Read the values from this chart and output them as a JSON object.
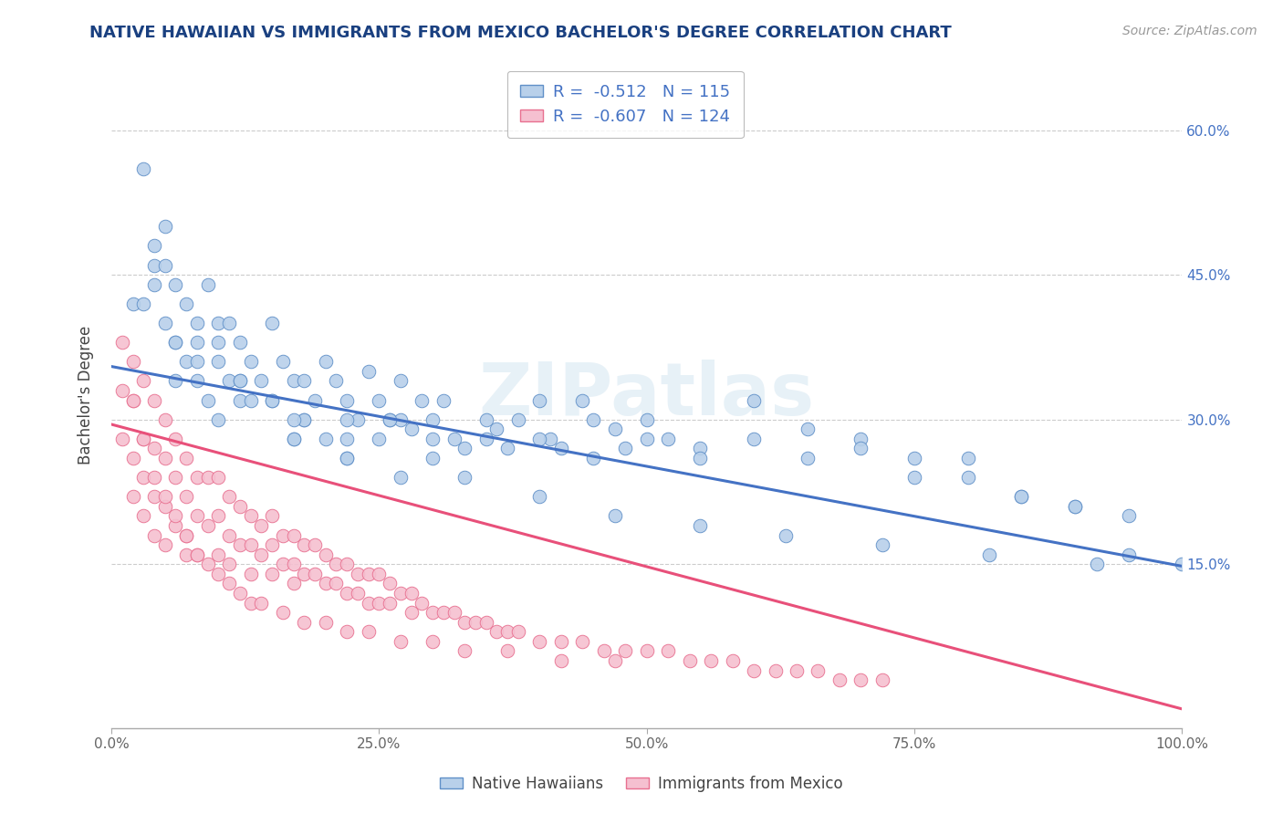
{
  "title": "NATIVE HAWAIIAN VS IMMIGRANTS FROM MEXICO BACHELOR'S DEGREE CORRELATION CHART",
  "source_text": "Source: ZipAtlas.com",
  "ylabel": "Bachelor's Degree",
  "x_min": 0.0,
  "x_max": 1.0,
  "y_min": -0.02,
  "y_max": 0.67,
  "x_ticks": [
    0.0,
    0.25,
    0.5,
    0.75,
    1.0
  ],
  "x_tick_labels": [
    "0.0%",
    "25.0%",
    "50.0%",
    "75.0%",
    "100.0%"
  ],
  "y_ticks": [
    0.15,
    0.3,
    0.45,
    0.6
  ],
  "y_tick_labels": [
    "15.0%",
    "30.0%",
    "45.0%",
    "60.0%"
  ],
  "blue_color": "#b8d0ea",
  "pink_color": "#f5c0d0",
  "blue_edge_color": "#6090c8",
  "pink_edge_color": "#e87090",
  "blue_line_color": "#4472c4",
  "pink_line_color": "#e8507a",
  "title_color": "#1a4080",
  "r_blue": -0.512,
  "n_blue": 115,
  "r_pink": -0.607,
  "n_pink": 124,
  "legend_label_blue": "Native Hawaiians",
  "legend_label_pink": "Immigrants from Mexico",
  "watermark": "ZIPatlas",
  "background_color": "#ffffff",
  "grid_color": "#cccccc",
  "blue_line_start_y": 0.355,
  "blue_line_end_y": 0.148,
  "pink_line_start_y": 0.295,
  "pink_line_end_y": 0.0,
  "blue_scatter_x": [
    0.03,
    0.05,
    0.02,
    0.04,
    0.04,
    0.05,
    0.06,
    0.06,
    0.07,
    0.07,
    0.08,
    0.08,
    0.09,
    0.1,
    0.1,
    0.1,
    0.11,
    0.11,
    0.12,
    0.12,
    0.13,
    0.14,
    0.15,
    0.15,
    0.16,
    0.17,
    0.17,
    0.18,
    0.18,
    0.19,
    0.2,
    0.2,
    0.21,
    0.22,
    0.22,
    0.23,
    0.24,
    0.25,
    0.25,
    0.26,
    0.27,
    0.27,
    0.28,
    0.29,
    0.3,
    0.3,
    0.31,
    0.32,
    0.33,
    0.35,
    0.36,
    0.37,
    0.38,
    0.4,
    0.41,
    0.42,
    0.44,
    0.45,
    0.47,
    0.48,
    0.5,
    0.52,
    0.55,
    0.6,
    0.65,
    0.7,
    0.75,
    0.8,
    0.85,
    0.9,
    0.95,
    0.04,
    0.06,
    0.08,
    0.1,
    0.12,
    0.15,
    0.18,
    0.22,
    0.26,
    0.3,
    0.35,
    0.4,
    0.45,
    0.5,
    0.55,
    0.6,
    0.65,
    0.7,
    0.75,
    0.8,
    0.85,
    0.9,
    0.95,
    1.0,
    0.03,
    0.06,
    0.09,
    0.13,
    0.17,
    0.22,
    0.27,
    0.33,
    0.4,
    0.47,
    0.55,
    0.63,
    0.72,
    0.82,
    0.92,
    0.05,
    0.08,
    0.12,
    0.17,
    0.22
  ],
  "blue_scatter_y": [
    0.56,
    0.5,
    0.42,
    0.48,
    0.44,
    0.4,
    0.44,
    0.38,
    0.42,
    0.36,
    0.4,
    0.34,
    0.44,
    0.4,
    0.36,
    0.3,
    0.4,
    0.34,
    0.38,
    0.32,
    0.36,
    0.34,
    0.4,
    0.32,
    0.36,
    0.34,
    0.28,
    0.34,
    0.3,
    0.32,
    0.36,
    0.28,
    0.34,
    0.32,
    0.26,
    0.3,
    0.35,
    0.32,
    0.28,
    0.3,
    0.34,
    0.3,
    0.29,
    0.32,
    0.3,
    0.26,
    0.32,
    0.28,
    0.27,
    0.3,
    0.29,
    0.27,
    0.3,
    0.32,
    0.28,
    0.27,
    0.32,
    0.3,
    0.29,
    0.27,
    0.3,
    0.28,
    0.27,
    0.32,
    0.29,
    0.28,
    0.24,
    0.26,
    0.22,
    0.21,
    0.16,
    0.46,
    0.38,
    0.36,
    0.38,
    0.34,
    0.32,
    0.3,
    0.3,
    0.3,
    0.28,
    0.28,
    0.28,
    0.26,
    0.28,
    0.26,
    0.28,
    0.26,
    0.27,
    0.26,
    0.24,
    0.22,
    0.21,
    0.2,
    0.15,
    0.42,
    0.34,
    0.32,
    0.32,
    0.28,
    0.26,
    0.24,
    0.24,
    0.22,
    0.2,
    0.19,
    0.18,
    0.17,
    0.16,
    0.15,
    0.46,
    0.38,
    0.34,
    0.3,
    0.28
  ],
  "pink_scatter_x": [
    0.01,
    0.01,
    0.01,
    0.02,
    0.02,
    0.02,
    0.02,
    0.03,
    0.03,
    0.03,
    0.03,
    0.04,
    0.04,
    0.04,
    0.04,
    0.05,
    0.05,
    0.05,
    0.05,
    0.06,
    0.06,
    0.06,
    0.07,
    0.07,
    0.07,
    0.07,
    0.08,
    0.08,
    0.08,
    0.09,
    0.09,
    0.1,
    0.1,
    0.1,
    0.11,
    0.11,
    0.11,
    0.12,
    0.12,
    0.13,
    0.13,
    0.13,
    0.14,
    0.14,
    0.15,
    0.15,
    0.15,
    0.16,
    0.16,
    0.17,
    0.17,
    0.17,
    0.18,
    0.18,
    0.19,
    0.19,
    0.2,
    0.2,
    0.21,
    0.21,
    0.22,
    0.22,
    0.23,
    0.23,
    0.24,
    0.24,
    0.25,
    0.25,
    0.26,
    0.26,
    0.27,
    0.28,
    0.28,
    0.29,
    0.3,
    0.31,
    0.32,
    0.33,
    0.34,
    0.35,
    0.36,
    0.37,
    0.38,
    0.4,
    0.42,
    0.44,
    0.46,
    0.48,
    0.5,
    0.52,
    0.54,
    0.56,
    0.58,
    0.6,
    0.62,
    0.64,
    0.66,
    0.68,
    0.7,
    0.72,
    0.02,
    0.03,
    0.04,
    0.05,
    0.06,
    0.07,
    0.08,
    0.09,
    0.1,
    0.11,
    0.12,
    0.13,
    0.14,
    0.16,
    0.18,
    0.2,
    0.22,
    0.24,
    0.27,
    0.3,
    0.33,
    0.37,
    0.42,
    0.47
  ],
  "pink_scatter_y": [
    0.38,
    0.33,
    0.28,
    0.36,
    0.32,
    0.26,
    0.22,
    0.34,
    0.28,
    0.24,
    0.2,
    0.32,
    0.27,
    0.22,
    0.18,
    0.3,
    0.26,
    0.21,
    0.17,
    0.28,
    0.24,
    0.19,
    0.26,
    0.22,
    0.18,
    0.16,
    0.24,
    0.2,
    0.16,
    0.24,
    0.19,
    0.24,
    0.2,
    0.16,
    0.22,
    0.18,
    0.15,
    0.21,
    0.17,
    0.2,
    0.17,
    0.14,
    0.19,
    0.16,
    0.2,
    0.17,
    0.14,
    0.18,
    0.15,
    0.18,
    0.15,
    0.13,
    0.17,
    0.14,
    0.17,
    0.14,
    0.16,
    0.13,
    0.15,
    0.13,
    0.15,
    0.12,
    0.14,
    0.12,
    0.14,
    0.11,
    0.14,
    0.11,
    0.13,
    0.11,
    0.12,
    0.12,
    0.1,
    0.11,
    0.1,
    0.1,
    0.1,
    0.09,
    0.09,
    0.09,
    0.08,
    0.08,
    0.08,
    0.07,
    0.07,
    0.07,
    0.06,
    0.06,
    0.06,
    0.06,
    0.05,
    0.05,
    0.05,
    0.04,
    0.04,
    0.04,
    0.04,
    0.03,
    0.03,
    0.03,
    0.32,
    0.28,
    0.24,
    0.22,
    0.2,
    0.18,
    0.16,
    0.15,
    0.14,
    0.13,
    0.12,
    0.11,
    0.11,
    0.1,
    0.09,
    0.09,
    0.08,
    0.08,
    0.07,
    0.07,
    0.06,
    0.06,
    0.05,
    0.05
  ]
}
